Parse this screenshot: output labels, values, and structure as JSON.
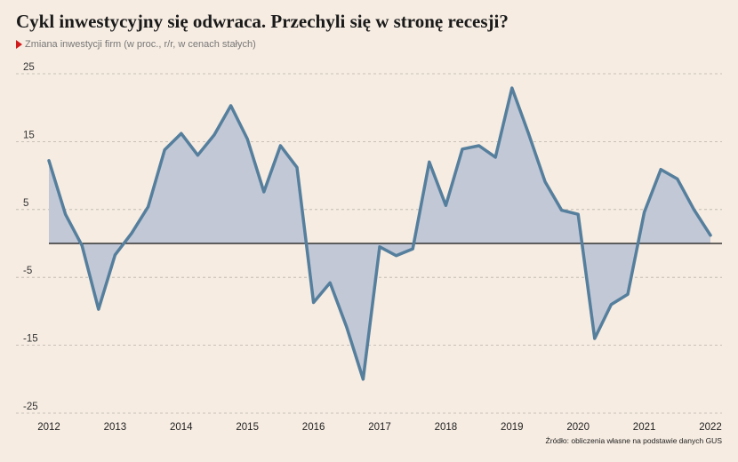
{
  "title": "Cykl inwestycyjny się odwraca. Przechyli się w stronę recesji?",
  "subtitle": "Zmiana inwestycji firm (w proc., r/r, w cenach stałych)",
  "source": "Źródło: obliczenia własne na podstawie danych GUS",
  "colors": {
    "background": "#f6ece2",
    "line": "#557f9d",
    "fill": "#c2c8d6",
    "marker": "#d11a1a"
  },
  "chart_data": {
    "type": "area",
    "title": "Cykl inwestycyjny się odwraca. Przechyli się w stronę recesji?",
    "ylabel": "",
    "xlabel": "",
    "ylim": [
      -25,
      25
    ],
    "yticks": [
      25,
      15,
      5,
      -5,
      -15,
      -25
    ],
    "xlim": [
      2012,
      2022
    ],
    "xticks": [
      2012,
      2013,
      2014,
      2015,
      2016,
      2017,
      2018,
      2019,
      2020,
      2021,
      2022
    ],
    "grid": true,
    "series": [
      {
        "x": [
          2012.0,
          2012.25,
          2012.5,
          2012.75,
          2013.0,
          2013.25,
          2013.5,
          2013.75,
          2014.0,
          2014.25,
          2014.5,
          2014.75,
          2015.0,
          2015.25,
          2015.5,
          2015.75,
          2016.0,
          2016.25,
          2016.5,
          2016.75,
          2017.0,
          2017.25,
          2017.5,
          2017.75,
          2018.0,
          2018.25,
          2018.5,
          2018.75,
          2019.0,
          2019.25,
          2019.5,
          2019.75,
          2020.0,
          2020.25,
          2020.5,
          2020.75,
          2021.0,
          2021.25,
          2021.5,
          2021.75,
          2022.0
        ],
        "values": [
          12.2,
          4.3,
          -0.3,
          -9.7,
          -1.7,
          1.5,
          5.4,
          13.8,
          16.2,
          13.0,
          16.0,
          20.3,
          15.4,
          7.6,
          14.4,
          11.2,
          -8.7,
          -5.8,
          -12.3,
          -20.0,
          -0.5,
          -1.8,
          -0.8,
          12.0,
          5.6,
          13.9,
          14.4,
          12.7,
          22.9,
          16.2,
          9.1,
          4.9,
          4.3,
          -14.0,
          -9.0,
          -7.5,
          4.6,
          10.9,
          9.5,
          5.0,
          1.2
        ]
      }
    ]
  }
}
